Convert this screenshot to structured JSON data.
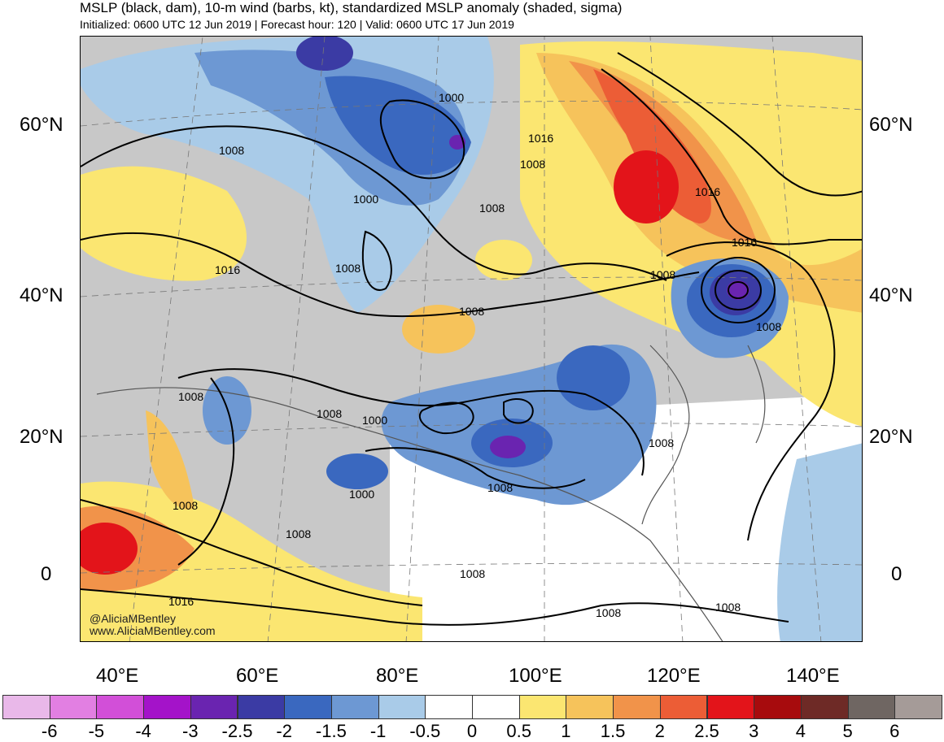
{
  "header": {
    "title": "MSLP (black, dam), 10-m wind (barbs, kt), standardized MSLP anomaly (shaded, sigma)",
    "subtitle": "Initialized: 0600 UTC 12 Jun 2019 | Forecast hour: 120 | Valid: 0600 UTC 17 Jun 2019"
  },
  "axes": {
    "lat_labels": [
      "60°N",
      "40°N",
      "20°N",
      "0"
    ],
    "lon_labels": [
      "40°E",
      "60°E",
      "80°E",
      "100°E",
      "120°E",
      "140°E"
    ]
  },
  "isobar_labels": [
    "1000",
    "1008",
    "1016",
    "1016",
    "1008",
    "1000",
    "1008",
    "1016",
    "1008",
    "1008",
    "1008",
    "1016",
    "1008",
    "1008",
    "1000",
    "1008",
    "1008",
    "1000",
    "1008",
    "1008",
    "1008",
    "1016",
    "1008",
    "1008",
    "1008"
  ],
  "credits": {
    "handle": "@AliciaMBentley",
    "website": "www.AliciaMBentley.com"
  },
  "colorbar": {
    "ticks": [
      "-6",
      "-5",
      "-4",
      "-3",
      "-2.5",
      "-2",
      "-1.5",
      "-1",
      "-0.5",
      "0",
      "0.5",
      "1",
      "1.5",
      "2",
      "2.5",
      "3",
      "4",
      "5",
      "6"
    ],
    "colors": [
      "#e9b8e9",
      "#e27fe2",
      "#d24fd8",
      "#a413c9",
      "#6a24b0",
      "#3b3ba4",
      "#3a68bf",
      "#6d98d3",
      "#a9cbe8",
      "#ffffff",
      "#ffffff",
      "#fbe671",
      "#f6c35b",
      "#f1934a",
      "#ec5d36",
      "#e3141a",
      "#a70b0d",
      "#6e2a26",
      "#6f6662",
      "#a59b98"
    ]
  },
  "colors": {
    "neutral": "#c8c8c8",
    "land_border": "#555555",
    "isobar": "#000000"
  }
}
